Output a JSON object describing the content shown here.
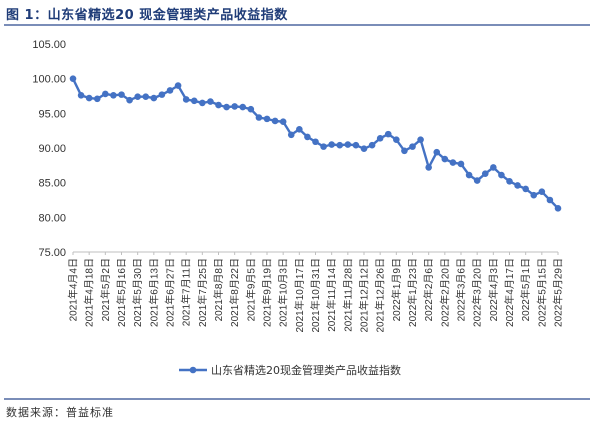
{
  "title": "图 1：山东省精选20 现金管理类产品收益指数",
  "source": "数据来源：普益标准",
  "colors": {
    "series": "#4472c4",
    "title": "#1f3c78",
    "rule": "#7a8db8",
    "axis": "#bfbfbf"
  },
  "chart_data": {
    "type": "line",
    "title": "",
    "xlabel": "",
    "ylabel": "",
    "ylim": [
      75,
      105
    ],
    "yticks": [
      "105.00",
      "100.00",
      "95.00",
      "90.00",
      "85.00",
      "80.00",
      "75.00"
    ],
    "grid": false,
    "legend_position": "bottom",
    "x_labels": [
      "2021年4月4日",
      "2021年4月18日",
      "2021年5月2日",
      "2021年5月16日",
      "2021年5月30日",
      "2021年6月13日",
      "2021年6月27日",
      "2021年7月11日",
      "2021年7月25日",
      "2021年8月8日",
      "2021年8月22日",
      "2021年9月5日",
      "2021年9月19日",
      "2021年10月3日",
      "2021年10月17日",
      "2021年10月31日",
      "2021年11月14日",
      "2021年11月28日",
      "2021年12月12日",
      "2021年12月26日",
      "2022年1月9日",
      "2022年1月23日",
      "2022年2月6日",
      "2022年2月20日",
      "2022年3月6日",
      "2022年3月20日",
      "2022年4月3日",
      "2022年4月17日",
      "2022年5月1日",
      "2022年5月15日",
      "2022年5月29日"
    ],
    "series": [
      {
        "name": "山东省精选20现金管理类产品收益指数",
        "values": [
          100.0,
          97.6,
          97.2,
          97.1,
          97.8,
          97.6,
          97.7,
          96.9,
          97.4,
          97.4,
          97.2,
          97.7,
          98.3,
          99.0,
          97.0,
          96.8,
          96.5,
          96.7,
          96.2,
          95.9,
          96.0,
          95.9,
          95.6,
          94.4,
          94.2,
          93.9,
          93.8,
          91.9,
          92.7,
          91.6,
          90.9,
          90.2,
          90.5,
          90.4,
          90.5,
          90.4,
          89.9,
          90.4,
          91.4,
          92.0,
          91.2,
          89.6,
          90.2,
          91.2,
          87.2,
          89.4,
          88.4,
          87.9,
          87.7,
          86.1,
          85.3,
          86.3,
          87.2,
          86.1,
          85.2,
          84.6,
          84.1,
          83.2,
          83.7,
          82.5,
          81.3
        ]
      }
    ]
  }
}
